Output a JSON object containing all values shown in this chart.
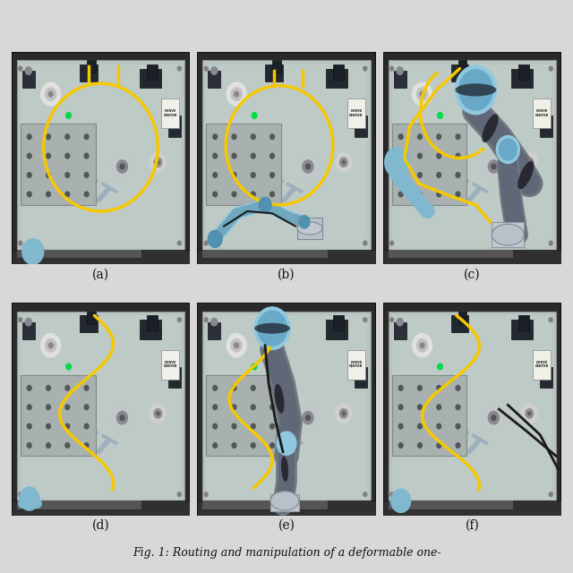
{
  "labels": [
    "(a)",
    "(b)",
    "(c)",
    "(d)",
    "(e)",
    "(f)"
  ],
  "nrows": 2,
  "ncols": 3,
  "background_color": "#d8d8d8",
  "label_fontsize": 10,
  "caption_fontsize": 9,
  "fig_width": 6.4,
  "fig_height": 6.4,
  "caption_text": "Fig. 1: Routing and manipulation of a deformable one-",
  "board_bg": "#c8cfc8",
  "board_edge": "#888888",
  "metal_plate_color": "#b0b8b8",
  "dark_fixture_color": "#2a3038",
  "hole_color": "#1a1a22",
  "cable_yellow": "#f5c800",
  "cable_black": "#1a1a1a",
  "robot_blue_light": "#90c8e0",
  "robot_blue_dark": "#5090b0",
  "robot_gray": "#606878",
  "robot_silver": "#c0c8d0",
  "nist_text_color": "#3050a0",
  "label_color": "#111111"
}
